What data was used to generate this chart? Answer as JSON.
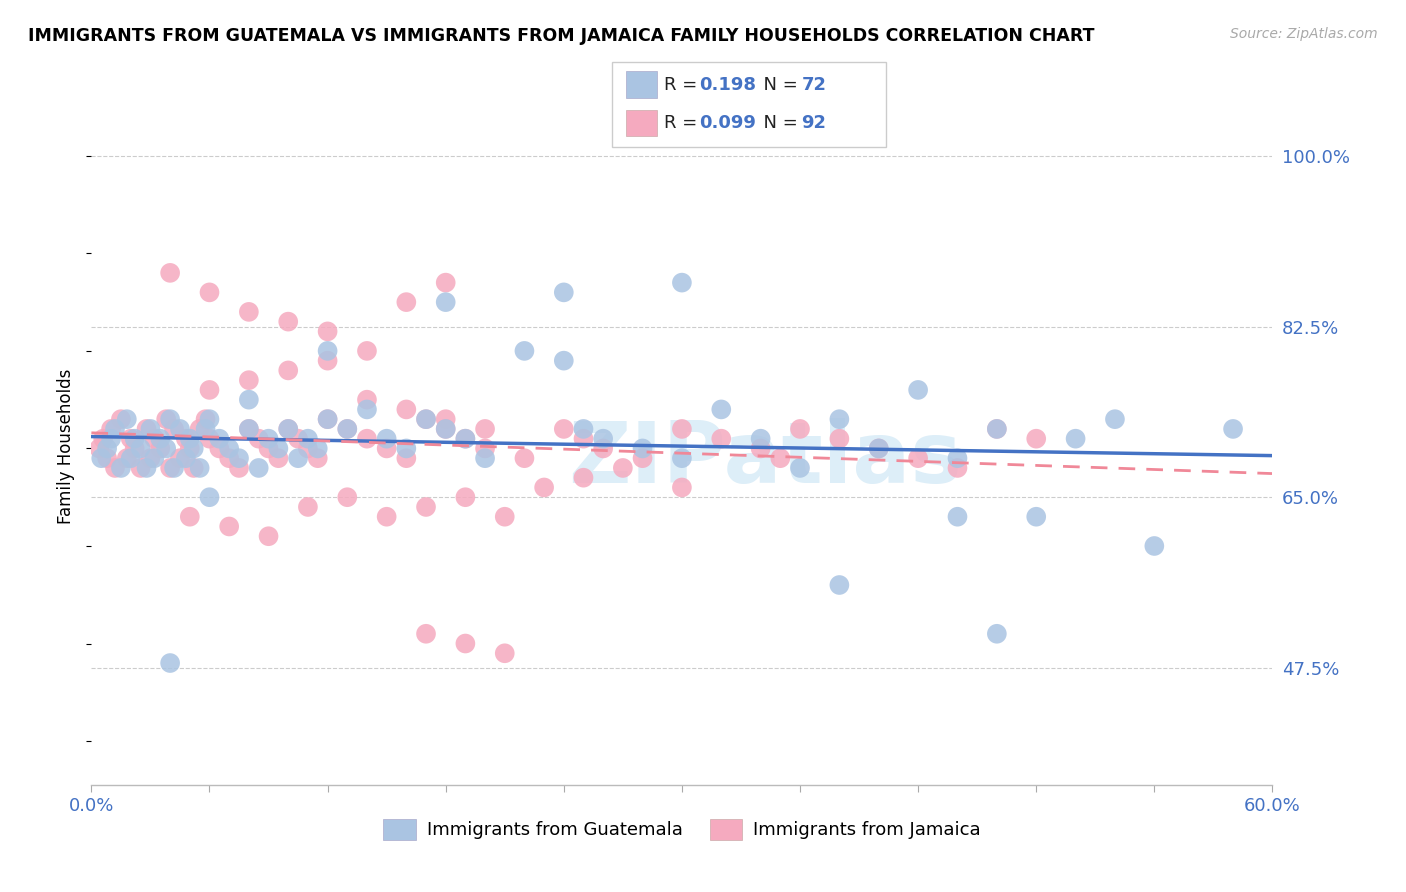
{
  "title": "IMMIGRANTS FROM GUATEMALA VS IMMIGRANTS FROM JAMAICA FAMILY HOUSEHOLDS CORRELATION CHART",
  "source": "Source: ZipAtlas.com",
  "ylabel": "Family Households",
  "ytick_labels": [
    "100.0%",
    "82.5%",
    "65.0%",
    "47.5%"
  ],
  "ytick_values": [
    1.0,
    0.825,
    0.65,
    0.475
  ],
  "xmin": 0.0,
  "xmax": 0.6,
  "ymin": 0.355,
  "ymax": 1.05,
  "guatemala_color": "#aac4e2",
  "jamaica_color": "#f5aabf",
  "guatemala_line_color": "#4472c4",
  "jamaica_line_color": "#f08898",
  "legend_R_guatemala": "0.198",
  "legend_N_guatemala": "72",
  "legend_R_jamaica": "0.099",
  "legend_N_jamaica": "92",
  "watermark": "ZIPatlas",
  "xtick_positions": [
    0.0,
    0.06,
    0.12,
    0.18,
    0.24,
    0.3,
    0.36,
    0.42,
    0.48,
    0.54,
    0.6
  ],
  "guatemala_x": [
    0.005,
    0.008,
    0.01,
    0.012,
    0.015,
    0.018,
    0.02,
    0.022,
    0.025,
    0.028,
    0.03,
    0.032,
    0.035,
    0.038,
    0.04,
    0.042,
    0.045,
    0.048,
    0.05,
    0.052,
    0.055,
    0.058,
    0.06,
    0.065,
    0.07,
    0.075,
    0.08,
    0.085,
    0.09,
    0.095,
    0.1,
    0.105,
    0.11,
    0.115,
    0.12,
    0.13,
    0.14,
    0.15,
    0.16,
    0.17,
    0.18,
    0.19,
    0.2,
    0.22,
    0.24,
    0.25,
    0.26,
    0.28,
    0.3,
    0.32,
    0.34,
    0.36,
    0.38,
    0.4,
    0.42,
    0.44,
    0.46,
    0.48,
    0.5,
    0.52,
    0.54,
    0.44,
    0.38,
    0.58,
    0.46,
    0.3,
    0.24,
    0.18,
    0.12,
    0.08,
    0.06,
    0.04
  ],
  "guatemala_y": [
    0.69,
    0.7,
    0.71,
    0.72,
    0.68,
    0.73,
    0.69,
    0.71,
    0.7,
    0.68,
    0.72,
    0.69,
    0.71,
    0.7,
    0.73,
    0.68,
    0.72,
    0.69,
    0.71,
    0.7,
    0.68,
    0.72,
    0.73,
    0.71,
    0.7,
    0.69,
    0.72,
    0.68,
    0.71,
    0.7,
    0.72,
    0.69,
    0.71,
    0.7,
    0.73,
    0.72,
    0.74,
    0.71,
    0.7,
    0.73,
    0.72,
    0.71,
    0.69,
    0.8,
    0.79,
    0.72,
    0.71,
    0.7,
    0.69,
    0.74,
    0.71,
    0.68,
    0.73,
    0.7,
    0.76,
    0.69,
    0.72,
    0.63,
    0.71,
    0.73,
    0.6,
    0.63,
    0.56,
    0.72,
    0.51,
    0.87,
    0.86,
    0.85,
    0.8,
    0.75,
    0.65,
    0.48
  ],
  "jamaica_x": [
    0.004,
    0.006,
    0.008,
    0.01,
    0.012,
    0.015,
    0.018,
    0.02,
    0.022,
    0.025,
    0.028,
    0.03,
    0.032,
    0.035,
    0.038,
    0.04,
    0.042,
    0.045,
    0.048,
    0.05,
    0.052,
    0.055,
    0.058,
    0.06,
    0.065,
    0.07,
    0.075,
    0.08,
    0.085,
    0.09,
    0.095,
    0.1,
    0.105,
    0.11,
    0.115,
    0.12,
    0.13,
    0.14,
    0.15,
    0.16,
    0.17,
    0.18,
    0.19,
    0.2,
    0.22,
    0.24,
    0.25,
    0.26,
    0.28,
    0.3,
    0.32,
    0.34,
    0.35,
    0.36,
    0.38,
    0.4,
    0.42,
    0.44,
    0.46,
    0.48,
    0.06,
    0.08,
    0.1,
    0.12,
    0.14,
    0.16,
    0.18,
    0.04,
    0.06,
    0.08,
    0.1,
    0.12,
    0.14,
    0.16,
    0.18,
    0.2,
    0.05,
    0.07,
    0.09,
    0.11,
    0.13,
    0.15,
    0.17,
    0.19,
    0.21,
    0.23,
    0.25,
    0.27,
    0.3,
    0.17,
    0.19,
    0.21
  ],
  "jamaica_y": [
    0.7,
    0.71,
    0.69,
    0.72,
    0.68,
    0.73,
    0.69,
    0.71,
    0.7,
    0.68,
    0.72,
    0.69,
    0.71,
    0.7,
    0.73,
    0.68,
    0.72,
    0.69,
    0.71,
    0.7,
    0.68,
    0.72,
    0.73,
    0.71,
    0.7,
    0.69,
    0.68,
    0.72,
    0.71,
    0.7,
    0.69,
    0.72,
    0.71,
    0.7,
    0.69,
    0.73,
    0.72,
    0.71,
    0.7,
    0.69,
    0.73,
    0.72,
    0.71,
    0.7,
    0.69,
    0.72,
    0.71,
    0.7,
    0.69,
    0.72,
    0.71,
    0.7,
    0.69,
    0.72,
    0.71,
    0.7,
    0.69,
    0.68,
    0.72,
    0.71,
    0.86,
    0.84,
    0.83,
    0.82,
    0.8,
    0.85,
    0.87,
    0.88,
    0.76,
    0.77,
    0.78,
    0.79,
    0.75,
    0.74,
    0.73,
    0.72,
    0.63,
    0.62,
    0.61,
    0.64,
    0.65,
    0.63,
    0.64,
    0.65,
    0.63,
    0.66,
    0.67,
    0.68,
    0.66,
    0.51,
    0.5,
    0.49
  ]
}
